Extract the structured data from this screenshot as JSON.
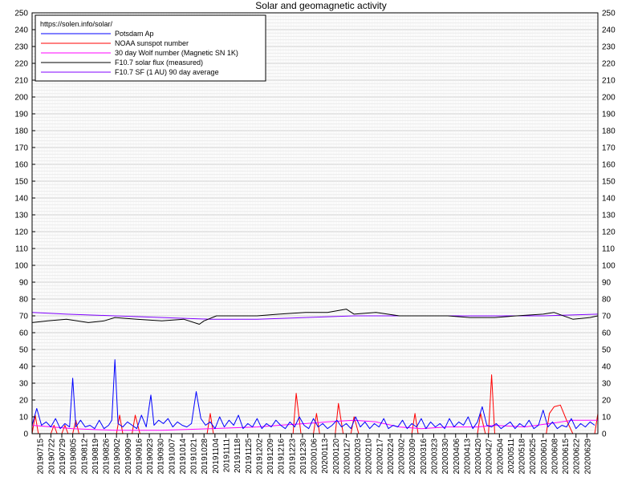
{
  "chart_data": {
    "type": "line",
    "title": "Solar and geomagnetic activity",
    "annotation": "https://solen.info/solar/",
    "xlabel": "",
    "ylabel": "",
    "ylim": [
      0,
      250
    ],
    "yticks": [
      0,
      10,
      20,
      30,
      40,
      50,
      60,
      70,
      80,
      90,
      100,
      110,
      120,
      130,
      140,
      150,
      160,
      170,
      180,
      190,
      200,
      210,
      220,
      230,
      240,
      250
    ],
    "grid": true,
    "legend_placement": "top-left",
    "x_tick_labels": [
      "20190715",
      "20190722",
      "20190729",
      "20190805",
      "20190812",
      "20190819",
      "20190826",
      "20190902",
      "20190909",
      "20190916",
      "20190923",
      "20190930",
      "20191007",
      "20191014",
      "20191021",
      "20191028",
      "20191104",
      "20191111",
      "20191118",
      "20191125",
      "20191202",
      "20191209",
      "20191216",
      "20191223",
      "20191230",
      "20200106",
      "20200113",
      "20200120",
      "20200127",
      "20200203",
      "20200210",
      "20200217",
      "20200224",
      "20200302",
      "20200309",
      "20200316",
      "20200323",
      "20200330",
      "20200406",
      "20200413",
      "20200420",
      "20200427",
      "20200504",
      "20200511",
      "20200518",
      "20200525",
      "20200601",
      "20200608",
      "20200615",
      "20200622",
      "20200629"
    ],
    "x_start": "20190710",
    "x_end": "20200706",
    "series": [
      {
        "name": "Potsdam Ap",
        "color": "#0000ff",
        "points": [
          [
            "20190710",
            5
          ],
          [
            "20190713",
            15
          ],
          [
            "20190716",
            5
          ],
          [
            "20190719",
            7
          ],
          [
            "20190722",
            4
          ],
          [
            "20190725",
            9
          ],
          [
            "20190728",
            3
          ],
          [
            "20190731",
            6
          ],
          [
            "20190803",
            4
          ],
          [
            "20190805",
            33
          ],
          [
            "20190807",
            4
          ],
          [
            "20190810",
            8
          ],
          [
            "20190813",
            4
          ],
          [
            "20190816",
            5
          ],
          [
            "20190819",
            3
          ],
          [
            "20190822",
            8
          ],
          [
            "20190825",
            3
          ],
          [
            "20190828",
            5
          ],
          [
            "20190830",
            8
          ],
          [
            "20190901",
            44
          ],
          [
            "20190903",
            6
          ],
          [
            "20190906",
            4
          ],
          [
            "20190909",
            7
          ],
          [
            "20190912",
            5
          ],
          [
            "20190915",
            3
          ],
          [
            "20190918",
            11
          ],
          [
            "20190921",
            4
          ],
          [
            "20190924",
            23
          ],
          [
            "20190926",
            5
          ],
          [
            "20190929",
            8
          ],
          [
            "20191002",
            6
          ],
          [
            "20191005",
            9
          ],
          [
            "20191008",
            4
          ],
          [
            "20191011",
            7
          ],
          [
            "20191014",
            5
          ],
          [
            "20191017",
            4
          ],
          [
            "20191020",
            6
          ],
          [
            "20191023",
            25
          ],
          [
            "20191026",
            9
          ],
          [
            "20191029",
            5
          ],
          [
            "20191101",
            7
          ],
          [
            "20191104",
            3
          ],
          [
            "20191107",
            10
          ],
          [
            "20191110",
            4
          ],
          [
            "20191113",
            8
          ],
          [
            "20191116",
            5
          ],
          [
            "20191119",
            11
          ],
          [
            "20191122",
            3
          ],
          [
            "20191125",
            6
          ],
          [
            "20191128",
            4
          ],
          [
            "20191201",
            9
          ],
          [
            "20191204",
            3
          ],
          [
            "20191207",
            6
          ],
          [
            "20191210",
            4
          ],
          [
            "20191213",
            8
          ],
          [
            "20191216",
            5
          ],
          [
            "20191219",
            3
          ],
          [
            "20191222",
            7
          ],
          [
            "20191225",
            4
          ],
          [
            "20191228",
            10
          ],
          [
            "20191231",
            5
          ],
          [
            "20200103",
            3
          ],
          [
            "20200106",
            9
          ],
          [
            "20200109",
            4
          ],
          [
            "20200112",
            6
          ],
          [
            "20200115",
            3
          ],
          [
            "20200118",
            5
          ],
          [
            "20200121",
            8
          ],
          [
            "20200124",
            4
          ],
          [
            "20200127",
            6
          ],
          [
            "20200130",
            3
          ],
          [
            "20200202",
            10
          ],
          [
            "20200205",
            4
          ],
          [
            "20200208",
            7
          ],
          [
            "20200211",
            3
          ],
          [
            "20200214",
            6
          ],
          [
            "20200217",
            4
          ],
          [
            "20200220",
            9
          ],
          [
            "20200223",
            3
          ],
          [
            "20200226",
            5
          ],
          [
            "20200229",
            4
          ],
          [
            "20200303",
            8
          ],
          [
            "20200306",
            3
          ],
          [
            "20200309",
            6
          ],
          [
            "20200312",
            4
          ],
          [
            "20200315",
            9
          ],
          [
            "20200318",
            3
          ],
          [
            "20200321",
            7
          ],
          [
            "20200324",
            4
          ],
          [
            "20200327",
            6
          ],
          [
            "20200330",
            3
          ],
          [
            "20200402",
            9
          ],
          [
            "20200405",
            4
          ],
          [
            "20200408",
            7
          ],
          [
            "20200411",
            5
          ],
          [
            "20200414",
            10
          ],
          [
            "20200417",
            3
          ],
          [
            "20200420",
            7
          ],
          [
            "20200423",
            16
          ],
          [
            "20200426",
            5
          ],
          [
            "20200429",
            4
          ],
          [
            "20200502",
            6
          ],
          [
            "20200505",
            3
          ],
          [
            "20200508",
            5
          ],
          [
            "20200511",
            7
          ],
          [
            "20200514",
            3
          ],
          [
            "20200517",
            6
          ],
          [
            "20200520",
            4
          ],
          [
            "20200523",
            8
          ],
          [
            "20200526",
            3
          ],
          [
            "20200529",
            5
          ],
          [
            "20200601",
            14
          ],
          [
            "20200604",
            4
          ],
          [
            "20200607",
            7
          ],
          [
            "20200610",
            3
          ],
          [
            "20200613",
            5
          ],
          [
            "20200616",
            4
          ],
          [
            "20200619",
            9
          ],
          [
            "20200622",
            3
          ],
          [
            "20200625",
            6
          ],
          [
            "20200628",
            4
          ],
          [
            "20200701",
            7
          ],
          [
            "20200704",
            5
          ]
        ]
      },
      {
        "name": "NOAA sunspot number",
        "color": "#ff0000",
        "points": [
          [
            "20190710",
            0
          ],
          [
            "20190712",
            11
          ],
          [
            "20190714",
            0
          ],
          [
            "20190722",
            0
          ],
          [
            "20190724",
            5
          ],
          [
            "20190726",
            0
          ],
          [
            "20190729",
            0
          ],
          [
            "20190731",
            5
          ],
          [
            "20190802",
            0
          ],
          [
            "20190805",
            0
          ],
          [
            "20190807",
            8
          ],
          [
            "20190809",
            0
          ],
          [
            "20190902",
            0
          ],
          [
            "20190904",
            11
          ],
          [
            "20190906",
            0
          ],
          [
            "20190912",
            0
          ],
          [
            "20190914",
            11
          ],
          [
            "20190917",
            0
          ],
          [
            "20191030",
            0
          ],
          [
            "20191101",
            12
          ],
          [
            "20191103",
            0
          ],
          [
            "20191224",
            0
          ],
          [
            "20191226",
            24
          ],
          [
            "20191229",
            0
          ],
          [
            "20200106",
            0
          ],
          [
            "20200108",
            12
          ],
          [
            "20200110",
            0
          ],
          [
            "20200120",
            0
          ],
          [
            "20200122",
            18
          ],
          [
            "20200125",
            0
          ],
          [
            "20200130",
            0
          ],
          [
            "20200201",
            10
          ],
          [
            "20200204",
            0
          ],
          [
            "20200309",
            0
          ],
          [
            "20200311",
            12
          ],
          [
            "20200313",
            0
          ],
          [
            "20200420",
            0
          ],
          [
            "20200422",
            12
          ],
          [
            "20200425",
            0
          ],
          [
            "20200427",
            0
          ],
          [
            "20200429",
            35
          ],
          [
            "20200501",
            0
          ],
          [
            "20200603",
            0
          ],
          [
            "20200605",
            12
          ],
          [
            "20200608",
            16
          ],
          [
            "20200612",
            17
          ],
          [
            "20200616",
            8
          ],
          [
            "20200620",
            0
          ],
          [
            "20200704",
            0
          ],
          [
            "20200706",
            12
          ]
        ]
      },
      {
        "name": "30 day Wolf number (Magnetic SN 1K)",
        "color": "#ff00ff",
        "points": [
          [
            "20190710",
            5
          ],
          [
            "20190805",
            3
          ],
          [
            "20190901",
            2
          ],
          [
            "20191001",
            2
          ],
          [
            "20191101",
            3
          ],
          [
            "20191201",
            4
          ],
          [
            "20191215",
            5
          ],
          [
            "20200101",
            6
          ],
          [
            "20200115",
            7
          ],
          [
            "20200201",
            8
          ],
          [
            "20200215",
            7
          ],
          [
            "20200301",
            4
          ],
          [
            "20200315",
            3
          ],
          [
            "20200401",
            4
          ],
          [
            "20200420",
            4
          ],
          [
            "20200501",
            5
          ],
          [
            "20200520",
            4
          ],
          [
            "20200605",
            6
          ],
          [
            "20200620",
            8
          ],
          [
            "20200706",
            8
          ]
        ]
      },
      {
        "name": "F10.7 solar flux (measured)",
        "color": "#000000",
        "points": [
          [
            "20190710",
            66
          ],
          [
            "20190720",
            67
          ],
          [
            "20190801",
            68
          ],
          [
            "20190815",
            66
          ],
          [
            "20190825",
            67
          ],
          [
            "20190901",
            69
          ],
          [
            "20190915",
            68
          ],
          [
            "20191001",
            67
          ],
          [
            "20191015",
            68
          ],
          [
            "20191025",
            65
          ],
          [
            "20191028",
            67
          ],
          [
            "20191105",
            70
          ],
          [
            "20191201",
            70
          ],
          [
            "20191215",
            71
          ],
          [
            "20200101",
            72
          ],
          [
            "20200115",
            72
          ],
          [
            "20200127",
            74
          ],
          [
            "20200201",
            71
          ],
          [
            "20200215",
            72
          ],
          [
            "20200301",
            70
          ],
          [
            "20200315",
            70
          ],
          [
            "20200401",
            70
          ],
          [
            "20200415",
            69
          ],
          [
            "20200501",
            69
          ],
          [
            "20200515",
            70
          ],
          [
            "20200601",
            71
          ],
          [
            "20200608",
            72
          ],
          [
            "20200620",
            68
          ],
          [
            "20200701",
            69
          ],
          [
            "20200706",
            70
          ]
        ]
      },
      {
        "name": "F10.7 SF (1 AU) 90 day average",
        "color": "#8000ff",
        "points": [
          [
            "20190710",
            72
          ],
          [
            "20190801",
            71
          ],
          [
            "20190901",
            70
          ],
          [
            "20191001",
            69
          ],
          [
            "20191101",
            68
          ],
          [
            "20191201",
            68
          ],
          [
            "20200101",
            69
          ],
          [
            "20200201",
            70
          ],
          [
            "20200301",
            70
          ],
          [
            "20200401",
            70
          ],
          [
            "20200501",
            70
          ],
          [
            "20200601",
            70
          ],
          [
            "20200706",
            71
          ]
        ]
      }
    ]
  }
}
